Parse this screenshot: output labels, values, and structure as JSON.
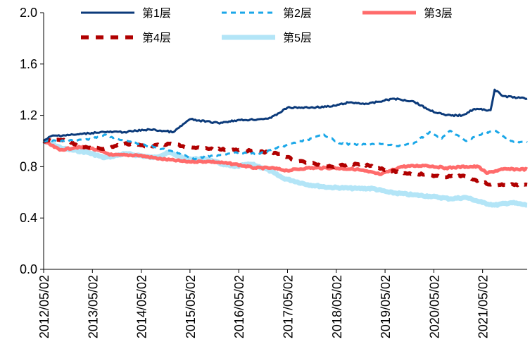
{
  "chart_data": {
    "type": "line",
    "title": "",
    "xlabel": "",
    "ylabel": "",
    "ylim": [
      0,
      2.0
    ],
    "yticks": [
      "0.0",
      "0.4",
      "0.8",
      "1.2",
      "1.6",
      "2.0"
    ],
    "xlim": [
      "2012-05-02",
      "2022-04-01"
    ],
    "xticks": [
      "2012/05/02",
      "2013/05/02",
      "2014/05/02",
      "2015/05/02",
      "2016/05/02",
      "2017/05/02",
      "2018/05/02",
      "2019/05/02",
      "2020/05/02",
      "2021/05/02"
    ],
    "grid": false,
    "legend_position": "top",
    "series": [
      {
        "name": "第1层",
        "color": "#0b3a7a",
        "style": "solid",
        "x": [
          "2012-05",
          "2012-07",
          "2013-01",
          "2013-07",
          "2014-01",
          "2014-07",
          "2015-01",
          "2015-05",
          "2015-07",
          "2015-12",
          "2016-04",
          "2016-10",
          "2017-01",
          "2017-05",
          "2017-10",
          "2018-04",
          "2018-08",
          "2019-01",
          "2019-07",
          "2019-12",
          "2020-04",
          "2020-08",
          "2020-12",
          "2021-03",
          "2021-07",
          "2021-08",
          "2021-10",
          "2022-04"
        ],
        "y": [
          1.0,
          1.04,
          1.05,
          1.07,
          1.07,
          1.09,
          1.07,
          1.17,
          1.16,
          1.14,
          1.16,
          1.17,
          1.18,
          1.26,
          1.26,
          1.27,
          1.3,
          1.29,
          1.33,
          1.31,
          1.24,
          1.2,
          1.2,
          1.25,
          1.24,
          1.4,
          1.35,
          1.33
        ]
      },
      {
        "name": "第2层",
        "color": "#1aa7e8",
        "style": "dashed",
        "x": [
          "2012-05",
          "2012-10",
          "2013-04",
          "2013-08",
          "2014-01",
          "2014-07",
          "2015-01",
          "2015-06",
          "2015-12",
          "2016-04",
          "2016-10",
          "2017-01",
          "2017-06",
          "2017-10",
          "2018-02",
          "2018-06",
          "2018-10",
          "2019-03",
          "2019-08",
          "2019-12",
          "2020-04",
          "2020-07",
          "2020-09",
          "2021-01",
          "2021-05",
          "2021-08",
          "2021-12",
          "2022-04"
        ],
        "y": [
          1.0,
          1.0,
          1.01,
          1.05,
          1.0,
          0.96,
          0.92,
          0.86,
          0.89,
          0.91,
          0.9,
          0.93,
          0.98,
          1.01,
          1.05,
          0.98,
          0.97,
          0.98,
          0.96,
          0.98,
          1.07,
          1.02,
          1.08,
          1.0,
          1.06,
          1.08,
          1.0,
          0.99
        ]
      },
      {
        "name": "第3层",
        "color": "#ff6b6b",
        "style": "solid",
        "x": [
          "2012-05",
          "2012-09",
          "2013-01",
          "2013-04",
          "2013-10",
          "2014-04",
          "2014-10",
          "2015-04",
          "2015-10",
          "2016-04",
          "2016-09",
          "2017-01",
          "2017-05",
          "2017-10",
          "2018-04",
          "2018-10",
          "2019-01",
          "2019-04",
          "2019-09",
          "2020-03",
          "2020-08",
          "2021-01",
          "2021-04",
          "2021-06",
          "2021-10",
          "2022-04"
        ],
        "y": [
          1.0,
          0.93,
          0.95,
          0.95,
          0.89,
          0.89,
          0.86,
          0.84,
          0.84,
          0.82,
          0.79,
          0.79,
          0.77,
          0.79,
          0.79,
          0.78,
          0.76,
          0.74,
          0.8,
          0.81,
          0.79,
          0.8,
          0.8,
          0.75,
          0.78,
          0.78
        ]
      },
      {
        "name": "第4层",
        "color": "#b00000",
        "style": "dashed",
        "x": [
          "2012-05",
          "2012-10",
          "2013-03",
          "2013-08",
          "2014-01",
          "2014-07",
          "2015-01",
          "2015-04",
          "2015-10",
          "2016-04",
          "2016-10",
          "2017-03",
          "2017-07",
          "2017-12",
          "2018-04",
          "2018-09",
          "2019-01",
          "2019-06",
          "2019-10",
          "2020-03",
          "2020-07",
          "2020-12",
          "2021-03",
          "2021-07",
          "2022-04"
        ],
        "y": [
          1.0,
          1.01,
          0.95,
          0.94,
          0.98,
          0.96,
          0.98,
          0.95,
          0.94,
          0.93,
          0.92,
          0.9,
          0.85,
          0.82,
          0.8,
          0.82,
          0.81,
          0.77,
          0.75,
          0.74,
          0.72,
          0.73,
          0.7,
          0.66,
          0.66
        ]
      },
      {
        "name": "第5层",
        "color": "#b3e5f7",
        "style": "solid",
        "x": [
          "2012-05",
          "2012-10",
          "2013-04",
          "2013-08",
          "2014-01",
          "2014-04",
          "2014-08",
          "2014-12",
          "2015-04",
          "2015-09",
          "2016-01",
          "2016-04",
          "2016-08",
          "2016-12",
          "2017-04",
          "2017-10",
          "2018-03",
          "2018-10",
          "2019-02",
          "2019-06",
          "2019-12",
          "2020-04",
          "2020-09",
          "2021-01",
          "2021-05",
          "2021-08",
          "2021-12",
          "2022-04"
        ],
        "y": [
          1.0,
          0.94,
          0.91,
          0.87,
          0.9,
          0.89,
          0.87,
          0.91,
          0.86,
          0.86,
          0.82,
          0.8,
          0.82,
          0.78,
          0.71,
          0.66,
          0.64,
          0.63,
          0.63,
          0.6,
          0.58,
          0.57,
          0.55,
          0.56,
          0.52,
          0.5,
          0.52,
          0.5
        ]
      }
    ]
  }
}
